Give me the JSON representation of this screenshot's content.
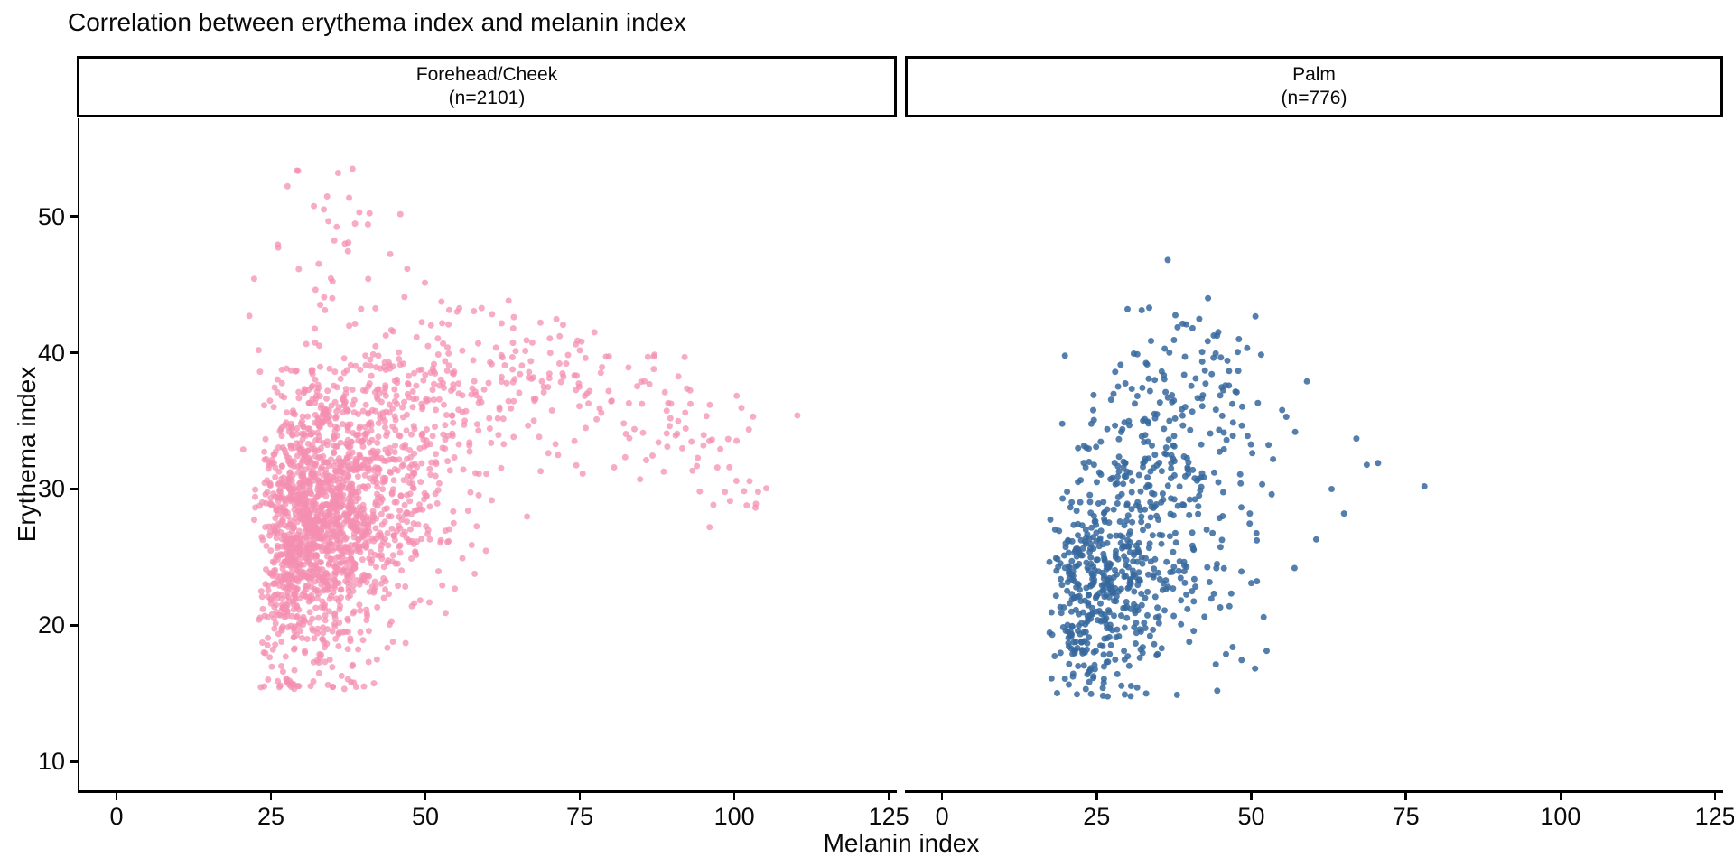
{
  "title": "Correlation between erythema index and melanin index",
  "chart_data": {
    "type": "scatter",
    "title": "Correlation between erythema index and melanin index",
    "xlabel": "Melanin index",
    "ylabel": "Erythema index",
    "grid": "off",
    "legend": "none",
    "x_ticks": [
      0,
      25,
      50,
      75,
      100,
      125
    ],
    "y_ticks": [
      10,
      20,
      30,
      40,
      50
    ],
    "x_range": [
      -6,
      126.3
    ],
    "y_range": [
      7.9,
      57.2
    ],
    "point_radius": 3.5,
    "facets": [
      {
        "label": "Forehead/Cheek",
        "n_label": "(n=2101)",
        "n": 2101,
        "color": "#F48FB1",
        "alpha": 0.75,
        "seed": 42,
        "description": "Dense cluster at melanin 22-50, erythema 17-40 (peak near 32, 28); fan of points arcs right to melanin ~110 at erythema 27-41; sparse outliers up to erythema 53.5",
        "components": [
          {
            "kind": "gamma-core",
            "n": 1800,
            "x0": 22.5,
            "shape": 2.9,
            "scale": 4.4,
            "xjit": 1.2,
            "xref": 35,
            "ymean": 28.2,
            "yslope": 0.17,
            "ysd": 5.0,
            "ymin": 15.3,
            "ymax": 45.5
          },
          {
            "kind": "band",
            "n": 260,
            "x0": 44,
            "xspan": 58,
            "xpow": 1.25,
            "xjit": 3.5,
            "peak_x": 66,
            "peak_y": 38,
            "curv": 0.0055,
            "ysd": 2.8
          },
          {
            "kind": "top-uniform",
            "n": 35,
            "mx": 35.5,
            "sx": 5.5,
            "ylo": 42.8,
            "yhi": 53.6
          },
          {
            "kind": "points",
            "pts": [
              [
                110.2,
                35.4
              ],
              [
                102,
                28.8
              ],
              [
                96,
                27.2
              ],
              [
                21.5,
                42.7
              ],
              [
                23,
                40.2
              ],
              [
                20.5,
                32.9
              ]
            ]
          }
        ]
      },
      {
        "label": "Palm",
        "n_label": "(n=776)",
        "n": 776,
        "color": "#36689E",
        "alpha": 0.85,
        "seed": 7,
        "description": "Dense cluster at melanin 18-45, erythema 15-32 (peak near 30, 23); looser spread above at erythema 30-43; sparse points right to melanin 78; top outlier near (36.5, 47)",
        "components": [
          {
            "kind": "gamma-core",
            "n": 560,
            "x0": 17.5,
            "shape": 2.5,
            "scale": 4.8,
            "xjit": 1.0,
            "xref": 29,
            "ymean": 23.2,
            "yslope": 0.14,
            "ysd": 4.1,
            "ymin": 14.6,
            "ymax": 32.0
          },
          {
            "kind": "gauss",
            "n": 185,
            "mx": 37,
            "my": 34.8,
            "sx": 7.0,
            "sy": 3.6,
            "rho": 0.15
          },
          {
            "kind": "points",
            "pts": [
              [
                36.5,
                46.8
              ],
              [
                33.5,
                43.3
              ],
              [
                30,
                43.2
              ],
              [
                78,
                30.2
              ],
              [
                67,
                33.7
              ],
              [
                63,
                30.0
              ],
              [
                60.5,
                26.3
              ],
              [
                57,
                24.2
              ],
              [
                52,
                20.6
              ],
              [
                44.5,
                15.2
              ],
              [
                38,
                14.9
              ],
              [
                33,
                15.0
              ],
              [
                55,
                35.8
              ],
              [
                59,
                37.9
              ],
              [
                48,
                41.0
              ],
              [
                43,
                44.0
              ],
              [
                40.5,
                41.8
              ],
              [
                36,
                40.3
              ],
              [
                28,
                38.6
              ],
              [
                24.5,
                36.9
              ],
              [
                22,
                33.0
              ],
              [
                19.5,
                29.3
              ],
              [
                18.5,
                24.0
              ],
              [
                20,
                19.6
              ],
              [
                23.5,
                16.4
              ],
              [
                26,
                15.4
              ],
              [
                30.5,
                14.8
              ],
              [
                47,
                18.4
              ],
              [
                50,
                23.1
              ],
              [
                65,
                28.2
              ],
              [
                70.5,
                31.9
              ]
            ]
          }
        ]
      }
    ]
  }
}
